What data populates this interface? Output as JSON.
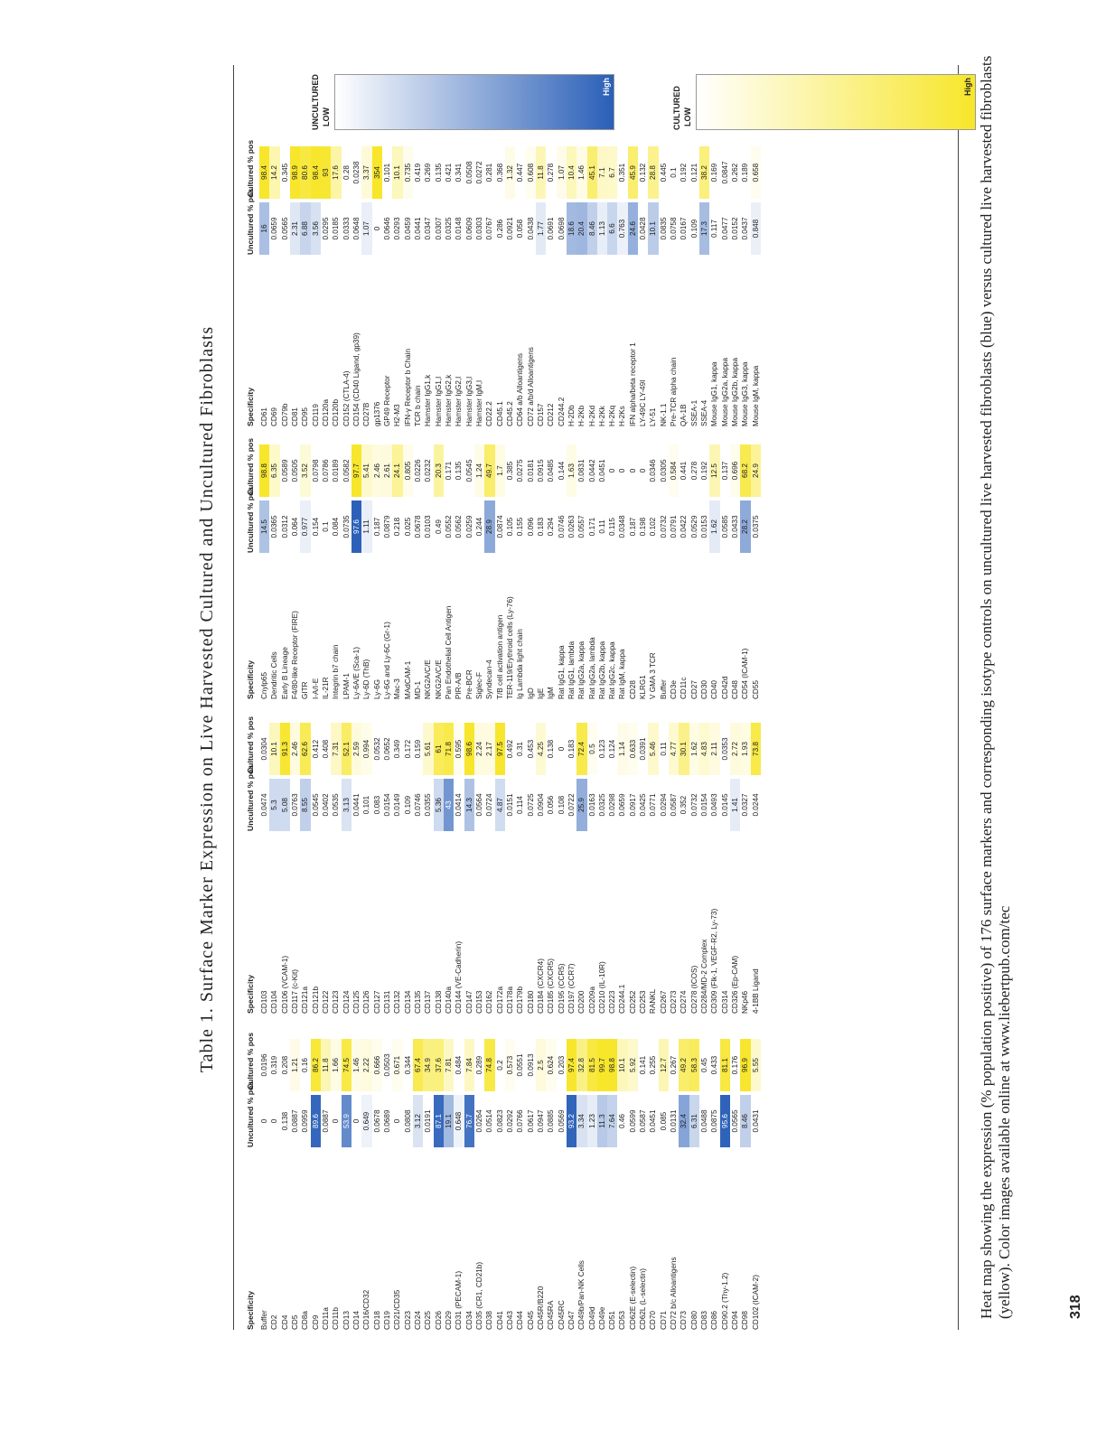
{
  "page": {
    "title": "Table 1. Surface Marker Expression on Live Harvested Cultured and Uncultured Fibroblasts",
    "page_number": "318",
    "caption": "Heat map showing the expression (% population positive) of 176 surface markers and corresponding isotype controls on uncultured live harvested fibroblasts (blue) versus cultured live harvested fibroblasts (yellow). Color images available online at www.liebertpub.com/tec"
  },
  "headers": {
    "specificity": "Specificity",
    "uncultured": "Uncultured % pos",
    "cultured": "Cultured % pos"
  },
  "colors": {
    "blue": "#2a5fb8",
    "yellow": "#f7e62a"
  },
  "legends": [
    {
      "title": "UNCULTURED",
      "low": "LOW",
      "high": "High",
      "color": "#2a5fb8"
    },
    {
      "title": "CULTURED",
      "low": "LOW",
      "high": "High",
      "color": "#f7e62a"
    }
  ],
  "tables": [
    {
      "rows": [
        [
          "Buffer",
          "0",
          "0.0196"
        ],
        [
          "CD2",
          "0",
          "0.319"
        ],
        [
          "CD4",
          "0.138",
          "0.208"
        ],
        [
          "CD5",
          "0.0887",
          "1.21"
        ],
        [
          "CD8a",
          "0.0959",
          "0.16"
        ],
        [
          "CD9",
          "89.6",
          "86.2"
        ],
        [
          "CD11a",
          "0.0887",
          "11.8"
        ],
        [
          "CD11b",
          "0",
          "1.66"
        ],
        [
          "CD13",
          "53.9",
          "74.5"
        ],
        [
          "CD14",
          "0",
          "1.46"
        ],
        [
          "CD16/CD32",
          "0.649",
          "2.22"
        ],
        [
          "CD18",
          "0.0678",
          "0.666"
        ],
        [
          "CD19",
          "0.0689",
          "0.0503"
        ],
        [
          "CD21/CD35",
          "0",
          "0.671"
        ],
        [
          "CD23",
          "0.0808",
          "0.344"
        ],
        [
          "CD24",
          "3.12",
          "67.4"
        ],
        [
          "CD25",
          "0.0191",
          "34.9"
        ],
        [
          "CD26",
          "87.1",
          "37.6"
        ],
        [
          "CD29",
          "19.1",
          "7.81"
        ],
        [
          "CD31 (PECAM-1)",
          "0.648",
          "0.484"
        ],
        [
          "CD34",
          "76.7",
          "7.84"
        ],
        [
          "CD35 (CR1, CD21b)",
          "0.0264",
          "0.289"
        ],
        [
          "CD38",
          "0.0514",
          "74.8"
        ],
        [
          "CD41",
          "0.0823",
          "0.2"
        ],
        [
          "CD43",
          "0.0292",
          "0.573"
        ],
        [
          "CD44",
          "0.0766",
          "0.0551"
        ],
        [
          "CD45",
          "0.0617",
          "0.0913"
        ],
        [
          "CD45R/B220",
          "0.0947",
          "2.5"
        ],
        [
          "CD45RA",
          "0.0885",
          "0.624"
        ],
        [
          "CD45RC",
          "0.0569",
          "0.203"
        ],
        [
          "CD47",
          "93.2",
          "97.4"
        ],
        [
          "CD49b/Pan-NK Cells",
          "3.34",
          "32.8"
        ],
        [
          "CD49d",
          "1.23",
          "81.5"
        ],
        [
          "CD49e",
          "11.3",
          "99.7"
        ],
        [
          "CD51",
          "7.64",
          "98.8"
        ],
        [
          "CD53",
          "0.46",
          "10.1"
        ],
        [
          "CD62E (E-selectin)",
          "0.0599",
          "5.92"
        ],
        [
          "CD62L (L-selectin)",
          "0.0587",
          "0.141"
        ],
        [
          "CD70",
          "0.0451",
          "0.255"
        ],
        [
          "CD71",
          "0.085",
          "12.7"
        ],
        [
          "CD72 b/c Alloantigens",
          "0.0131",
          "0.267"
        ],
        [
          "CD73",
          "32.4",
          "49.2"
        ],
        [
          "CD80",
          "6.31",
          "58.3"
        ],
        [
          "CD83",
          "0.0488",
          "0.45"
        ],
        [
          "CD86",
          "0.0875",
          "0.433"
        ],
        [
          "CD90.2 (Thy-1.2)",
          "95.6",
          "81.1"
        ],
        [
          "CD94",
          "0.0565",
          "0.176"
        ],
        [
          "CD98",
          "8.46",
          "96.9"
        ],
        [
          "CD102 (ICAM-2)",
          "0.0431",
          "5.55"
        ]
      ]
    },
    {
      "rows": [
        [
          "CD103",
          "0.0474",
          "0.0304"
        ],
        [
          "CD104",
          "5.3",
          "10.1"
        ],
        [
          "CD106 (VCAM-1)",
          "5.08",
          "91.3"
        ],
        [
          "CD117 (c-Kit)",
          "0.0763",
          "2.46"
        ],
        [
          "CD121a",
          "8.55",
          "62.6"
        ],
        [
          "CD121b",
          "0.0545",
          "0.412"
        ],
        [
          "CD122",
          "0.0402",
          "0.408"
        ],
        [
          "CD123",
          "0.0535",
          "7.31"
        ],
        [
          "CD124",
          "3.13",
          "52.1"
        ],
        [
          "CD125",
          "0.0441",
          "2.59"
        ],
        [
          "CD126",
          "0.101",
          "0.994"
        ],
        [
          "CD127",
          "0.083",
          "0.0532"
        ],
        [
          "CD131",
          "0.0154",
          "0.0652"
        ],
        [
          "CD132",
          "0.0149",
          "0.349"
        ],
        [
          "CD134",
          "0.109",
          "0.172"
        ],
        [
          "CD135",
          "0.0746",
          "0.159"
        ],
        [
          "CD137",
          "0.0355",
          "5.61"
        ],
        [
          "CD138",
          "5.36",
          "61"
        ],
        [
          "CD140a",
          "43",
          "71.8"
        ],
        [
          "CD144 (VE-Cadherin)",
          "0.0414",
          "0.595"
        ],
        [
          "CD147",
          "14.3",
          "98.6"
        ],
        [
          "CD153",
          "0.0564",
          "2.24"
        ],
        [
          "CD162",
          "0.0724",
          "2.17"
        ],
        [
          "CD172a",
          "4.87",
          "97.5"
        ],
        [
          "CD178a",
          "0.0151",
          "0.492"
        ],
        [
          "CD179b",
          "0.114",
          "0.31"
        ],
        [
          "CD180",
          "0.0725",
          "0.453"
        ],
        [
          "CD184 (CXCR4)",
          "0.0904",
          "4.25"
        ],
        [
          "CD185 (CXCR5)",
          "0.056",
          "0.138"
        ],
        [
          "CD195 (CCR5)",
          "0.108",
          "0"
        ],
        [
          "CD197 (CCR7)",
          "0.0722",
          "0.183"
        ],
        [
          "CD200",
          "25.9",
          "72.4"
        ],
        [
          "CD209a",
          "0.0163",
          "0.5"
        ],
        [
          "CD210 (IL-10R)",
          "0.0325",
          "0.123"
        ],
        [
          "CD223",
          "0.0298",
          "0.124"
        ],
        [
          "CD244.1",
          "0.0659",
          "1.14"
        ],
        [
          "CD252",
          "0.0917",
          "0.633"
        ],
        [
          "CD253",
          "0.0425",
          "0.0391"
        ],
        [
          "RANKL",
          "0.0771",
          "5.46"
        ],
        [
          "CD267",
          "0.0294",
          "0.11"
        ],
        [
          "CD273",
          "0.0587",
          "4.77"
        ],
        [
          "CD274",
          "0.352",
          "30.1"
        ],
        [
          "CD278 (ICOS)",
          "0.0732",
          "1.62"
        ],
        [
          "CD284/MD-2 Complex",
          "0.0154",
          "4.83"
        ],
        [
          "CD309 (Flk-1, VEGF-R2, Ly-73)",
          "0.0493",
          "2.11"
        ],
        [
          "CD314",
          "0.0145",
          "0.0353"
        ],
        [
          "CD326 (Ep-CAM)",
          "1.41",
          "2.72"
        ],
        [
          "NKp46",
          "0.0327",
          "1.93"
        ],
        [
          "4-1BB Ligand",
          "0.0244",
          "73.8"
        ]
      ]
    },
    {
      "rows": [
        [
          "Cnylp65",
          "14.5",
          "98.8"
        ],
        [
          "Dendritic Cells",
          "0.0365",
          "6.35"
        ],
        [
          "Early B Lineage",
          "0.0312",
          "0.0589"
        ],
        [
          "F4/80-like Receptor (FIRE)",
          "0.064",
          "0.0505"
        ],
        [
          "GITR",
          "0.977",
          "3.52"
        ],
        [
          "I-A/I-E",
          "0.154",
          "0.0798"
        ],
        [
          "IL-21R",
          "0.1",
          "0.0786"
        ],
        [
          "Integrin b7 chain",
          "0.084",
          "0.0189"
        ],
        [
          "LPAM-1",
          "0.0735",
          "0.0582"
        ],
        [
          "Ly-6A/E (Sca-1)",
          "97.6",
          "97.7"
        ],
        [
          "Ly-6D (ThB)",
          "1.11",
          "5.41"
        ],
        [
          "Ly-6G",
          "0.187",
          "2.46"
        ],
        [
          "Ly-6G and Ly-6C (Gr-1)",
          "0.0879",
          "2.61"
        ],
        [
          "Mac-3",
          "0.218",
          "24.1"
        ],
        [
          "MAdCAM-1",
          "0.025",
          "0.805"
        ],
        [
          "MD-1",
          "0.0678",
          "0.0226"
        ],
        [
          "NKG2A/C/E",
          "0.0103",
          "0.0232"
        ],
        [
          "NKG2A/C/E",
          "0.49",
          "20.3"
        ],
        [
          "Pan Endothelial Cell Antigen",
          "0.0552",
          "0.171"
        ],
        [
          "PIR-A/B",
          "0.0562",
          "0.135"
        ],
        [
          "Pre-BCR",
          "0.0259",
          "0.0545"
        ],
        [
          "Siglec-F",
          "0.244",
          "1.24"
        ],
        [
          "Syndecan-4",
          "28.9",
          "49.7"
        ],
        [
          "T/B cell activation antigen",
          "0.0874",
          "1.7"
        ],
        [
          "TER-119/Erythroid cells (Ly-76)",
          "0.105",
          "0.385"
        ],
        [
          "Ig Lambda light chain",
          "0.155",
          "0.0275"
        ],
        [
          "IgD",
          "0.096",
          "0.0181"
        ],
        [
          "IgE",
          "0.183",
          "0.0915"
        ],
        [
          "IgM",
          "0.294",
          "0.0485"
        ],
        [
          "Rat IgG1, kappa",
          "0.0746",
          "0.144"
        ],
        [
          "Rat IgG1, lambda",
          "0.0263",
          "1.63"
        ],
        [
          "Rat IgG2a, kappa",
          "0.0557",
          "0.0831"
        ],
        [
          "Rat IgG2a, lambda",
          "0.171",
          "0.0442"
        ],
        [
          "Rat IgG2b, kappa",
          "0.11",
          "0.0451"
        ],
        [
          "Rat IgG2c, kappa",
          "0.115",
          "0"
        ],
        [
          "Rat IgM, kappa",
          "0.0348",
          "0"
        ],
        [
          "CD28",
          "0.187",
          "0"
        ],
        [
          "KLRG1",
          "0.198",
          "0"
        ],
        [
          "V GMA 3 TCR",
          "0.102",
          "0.0346"
        ],
        [
          "Buffer",
          "0.0732",
          "0.0305"
        ],
        [
          "CD3e",
          "0.0791",
          "0.584"
        ],
        [
          "CD11c",
          "0.0422",
          "0.441"
        ],
        [
          "CD27",
          "0.0529",
          "0.278"
        ],
        [
          "CD30",
          "0.0153",
          "0.192"
        ],
        [
          "CD40",
          "1.62",
          "12.5"
        ],
        [
          "CD42d",
          "0.0585",
          "0.137"
        ],
        [
          "CD48",
          "0.0433",
          "0.696"
        ],
        [
          "CD54 (ICAM-1)",
          "28.2",
          "68.2"
        ],
        [
          "CD55",
          "0.0375",
          "24.9"
        ]
      ]
    },
    {
      "rows": [
        [
          "CD61",
          "16",
          "98.4"
        ],
        [
          "CD69",
          "0.0659",
          "14.2"
        ],
        [
          "CD79b",
          "0.0565",
          "0.345"
        ],
        [
          "CD81",
          "2.31",
          "98.9"
        ],
        [
          "CD95",
          "6.88",
          "80.6"
        ],
        [
          "CD119",
          "3.56",
          "98.4"
        ],
        [
          "CD120a",
          "0.0295",
          "93"
        ],
        [
          "CD120b",
          "0.0185",
          "17.6"
        ],
        [
          "CD152 (CTLA-4)",
          "0.0333",
          "0.28"
        ],
        [
          "CD154 (CD40 Ligand, gp39)",
          "0.0648",
          "0.0238"
        ],
        [
          "CD27B",
          "1.07",
          "3.37"
        ],
        [
          "gp1376",
          "0",
          "354"
        ],
        [
          "GP49 Receptor",
          "0.0646",
          "0.101"
        ],
        [
          "H2-M3",
          "0.0293",
          "10.1"
        ],
        [
          "IFN-γ Receptor b Chain",
          "0.0459",
          "0.735"
        ],
        [
          "TCR b chain",
          "0.0441",
          "0.419"
        ],
        [
          "Hamster IgG1,k",
          "0.0347",
          "0.269"
        ],
        [
          "Hamster IgG1,l",
          "0.0307",
          "0.135"
        ],
        [
          "Hamster IgG2,k",
          "0.0325",
          "0.421"
        ],
        [
          "Hamster IgG2,l",
          "0.0148",
          "0.341"
        ],
        [
          "Hamster IgG3,l",
          "0.0609",
          "0.0508"
        ],
        [
          "Hamster IgM,l",
          "0.0303",
          "0.0272"
        ],
        [
          "CD22.2",
          "0.0767",
          "0.281"
        ],
        [
          "CD45.1",
          "0.286",
          "0.368"
        ],
        [
          "CD45.2",
          "0.0921",
          "1.32"
        ],
        [
          "CD64 a/b Alloantigens",
          "0.058",
          "0.447"
        ],
        [
          "CD72 a/b/d Alloantigens",
          "0.0438",
          "0.608"
        ],
        [
          "CD157",
          "1.77",
          "11.8"
        ],
        [
          "CD212",
          "0.0691",
          "0.278"
        ],
        [
          "CD244.2",
          "0.0698",
          "1.07"
        ],
        [
          "H-2Db",
          "18.6",
          "10.4"
        ],
        [
          "H-2Kb",
          "20.4",
          "1.46"
        ],
        [
          "H-2Kd",
          "8.46",
          "45.1"
        ],
        [
          "H-2Kk",
          "1.13",
          "7.1"
        ],
        [
          "H-2Kq",
          "6.6",
          "6.7"
        ],
        [
          "H-2Ks",
          "0.763",
          "0.351"
        ],
        [
          "IFN alpha/beta receptor 1",
          "24.6",
          "45.9"
        ],
        [
          "LY-49C LY-49I",
          "0.0428",
          "0.132"
        ],
        [
          "LY-51",
          "10.1",
          "28.8"
        ],
        [
          "NK-1.1",
          "0.0835",
          "0.445"
        ],
        [
          "Pre-TCR alpha chain",
          "0.0758",
          "0.1"
        ],
        [
          "QA-1B",
          "0.0167",
          "0.192"
        ],
        [
          "SSEA-1",
          "0.109",
          "0.121"
        ],
        [
          "SSEA-4",
          "17.3",
          "38.2"
        ],
        [
          "Mouse IgG1, kappa",
          "0.117",
          "0.169"
        ],
        [
          "Mouse IgG2a, kappa",
          "0.0477",
          "0.0847"
        ],
        [
          "Mouse IgG2b, kappa",
          "0.0152",
          "0.262"
        ],
        [
          "Mouse IgG3, kappa",
          "0.0437",
          "0.189"
        ],
        [
          "Mouse IgM, kappa",
          "0.848",
          "0.658"
        ]
      ]
    }
  ]
}
